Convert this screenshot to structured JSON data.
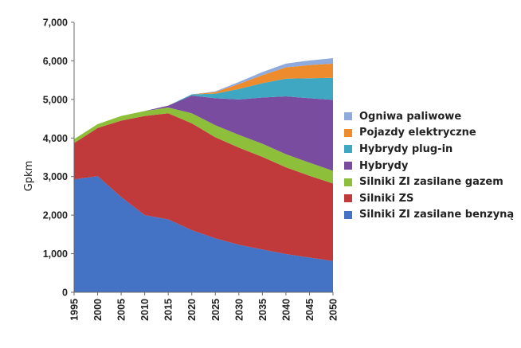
{
  "chart_data": {
    "type": "area",
    "stacked": true,
    "title": "",
    "xlabel": "",
    "ylabel": "Gpkm",
    "ylim": [
      0,
      7000
    ],
    "y_ticks": [
      "0",
      "1,000",
      "2,000",
      "3,000",
      "4,000",
      "5,000",
      "6,000",
      "7,000"
    ],
    "y_tick_values": [
      0,
      1000,
      2000,
      3000,
      4000,
      5000,
      6000,
      7000
    ],
    "x": [
      1995,
      2000,
      2005,
      2010,
      2015,
      2020,
      2025,
      2030,
      2035,
      2040,
      2045,
      2050
    ],
    "x_ticks": [
      "1995",
      "2000",
      "2005",
      "2010",
      "2015",
      "2020",
      "2025",
      "2030",
      "2035",
      "2040",
      "2045",
      "2050"
    ],
    "grid": false,
    "legend_position": "right",
    "series": [
      {
        "name": "Silniki ZI zasilane benzyną",
        "color": "#4472c4",
        "values": [
          2930,
          3010,
          2470,
          2000,
          1890,
          1610,
          1400,
          1230,
          1110,
          990,
          900,
          810
        ]
      },
      {
        "name": "Silniki ZS",
        "color": "#c0393b",
        "values": [
          940,
          1250,
          1980,
          2570,
          2750,
          2770,
          2620,
          2520,
          2400,
          2250,
          2120,
          2010
        ]
      },
      {
        "name": "Silniki ZI zasilane gazem",
        "color": "#8dbf3a",
        "values": [
          100,
          100,
          120,
          130,
          150,
          260,
          310,
          330,
          340,
          340,
          340,
          330
        ]
      },
      {
        "name": "Hybrydy",
        "color": "#7a4ca0",
        "values": [
          0,
          0,
          0,
          0,
          50,
          460,
          700,
          920,
          1200,
          1500,
          1670,
          1840
        ]
      },
      {
        "name": "Hybrydy plug-in",
        "color": "#3fa7c2",
        "values": [
          0,
          0,
          0,
          0,
          0,
          30,
          120,
          270,
          370,
          460,
          520,
          570
        ]
      },
      {
        "name": "Pojazdy elektryczne",
        "color": "#ee8b2c",
        "values": [
          0,
          0,
          0,
          0,
          0,
          0,
          40,
          130,
          210,
          290,
          340,
          370
        ]
      },
      {
        "name": "Ogniwa paliwowe",
        "color": "#8faadc",
        "values": [
          0,
          0,
          0,
          0,
          0,
          0,
          20,
          50,
          80,
          100,
          120,
          140
        ]
      }
    ],
    "legend": [
      {
        "label": "Ogniwa paliwowe",
        "color": "#8faadc"
      },
      {
        "label": "Pojazdy elektryczne",
        "color": "#ee8b2c"
      },
      {
        "label": "Hybrydy plug-in",
        "color": "#3fa7c2"
      },
      {
        "label": "Hybrydy",
        "color": "#7a4ca0"
      },
      {
        "label": "Silniki ZI zasilane gazem",
        "color": "#8dbf3a"
      },
      {
        "label": "Silniki ZS",
        "color": "#c0393b"
      },
      {
        "label": "Silniki ZI zasilane benzyną",
        "color": "#4472c4"
      }
    ]
  }
}
